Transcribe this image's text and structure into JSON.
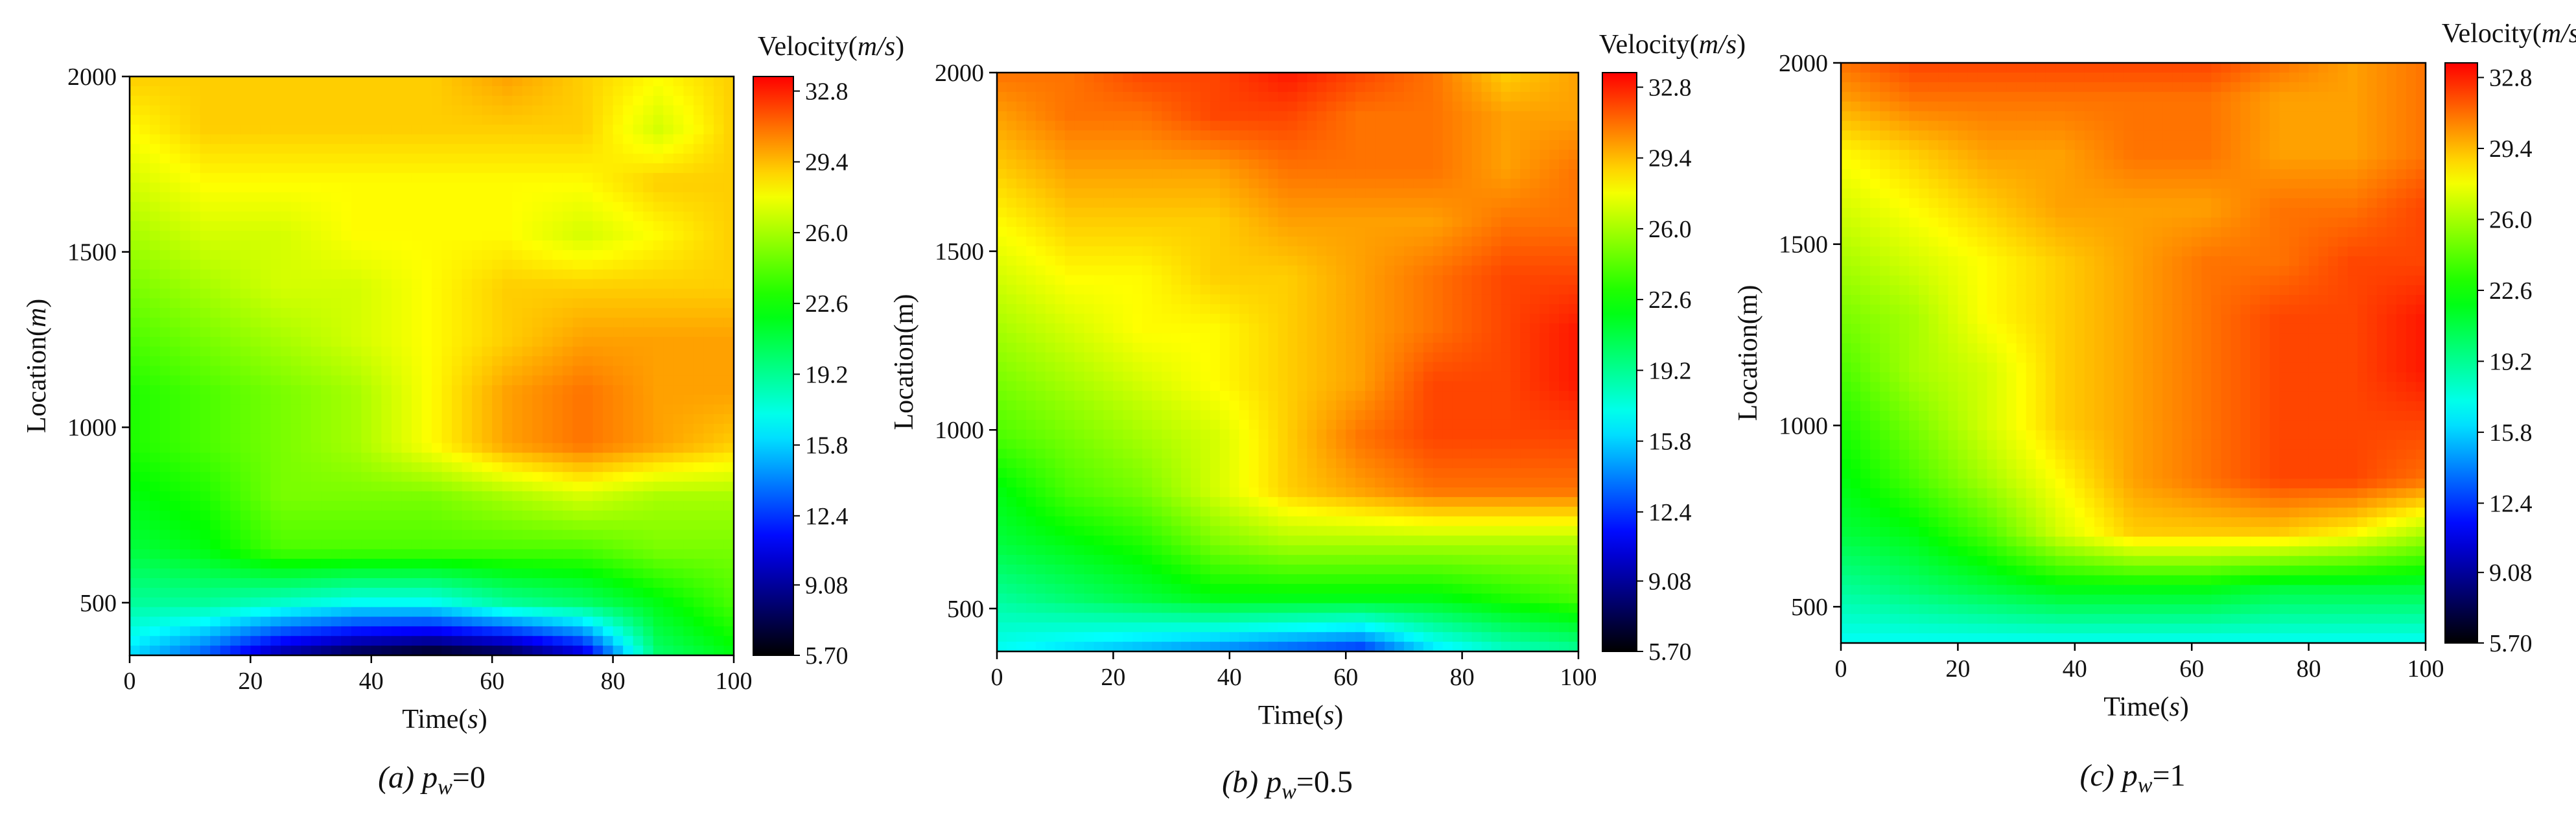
{
  "figure": {
    "panel_count": 3
  },
  "chart_data": [
    {
      "type": "heatmap",
      "panel_id": "a",
      "caption_prefix": "(a)",
      "caption_var": "p",
      "caption_sub": "w",
      "caption_value": "=0",
      "xlabel_main": "Time(",
      "xlabel_unit": "s",
      "xlabel_close": ")",
      "ylabel": "Location(m)",
      "ylabel_unit_italic": true,
      "colorbar_title_main": "Velocity(",
      "colorbar_title_unit": "m/s",
      "colorbar_title_close": ")",
      "xlim": [
        0,
        100
      ],
      "ylim": [
        350,
        2000
      ],
      "x_ticks": [
        0,
        20,
        40,
        60,
        80,
        100
      ],
      "y_ticks": [
        500,
        1000,
        1500,
        2000
      ],
      "colorbar_range": [
        5.7,
        33.5
      ],
      "colorbar_ticks": [
        "32.8",
        "29.4",
        "26.0",
        "22.6",
        "19.2",
        "15.8",
        "12.4",
        "9.08",
        "5.70"
      ],
      "colorbar_tick_values": [
        32.8,
        29.4,
        26.0,
        22.6,
        19.2,
        15.8,
        12.4,
        9.08,
        5.7
      ],
      "colorscale": [
        "#000000",
        "#0000ff",
        "#00ffff",
        "#00ff00",
        "#ffff00",
        "#ff0000"
      ],
      "grid_x": [
        0,
        12.5,
        25,
        37.5,
        50,
        62.5,
        75,
        87.5,
        100
      ],
      "grid_y": [
        350,
        500,
        650,
        800,
        950,
        1100,
        1250,
        1400,
        1550,
        1700,
        1850,
        2000
      ],
      "values": [
        [
          16,
          13,
          9,
          7,
          6,
          7,
          10,
          20,
          22
        ],
        [
          19,
          19,
          18,
          17,
          17,
          19,
          20,
          22,
          24
        ],
        [
          21,
          22,
          24,
          24,
          24,
          24,
          24,
          25,
          25
        ],
        [
          22,
          23,
          25,
          25,
          25,
          26,
          27,
          26,
          26
        ],
        [
          23,
          24,
          25,
          26,
          28,
          30,
          31,
          30,
          29
        ],
        [
          23,
          24,
          25,
          26,
          28,
          30,
          31,
          30,
          30
        ],
        [
          24,
          25,
          26,
          27,
          28,
          29,
          30,
          30,
          30
        ],
        [
          25,
          26,
          27,
          27,
          28,
          29,
          29,
          29,
          29
        ],
        [
          26,
          27,
          27,
          28,
          28,
          28,
          27,
          28,
          29
        ],
        [
          27,
          28,
          28,
          28,
          28,
          28,
          28,
          29,
          29
        ],
        [
          28,
          29,
          29,
          29,
          29,
          29,
          29,
          27,
          29
        ],
        [
          29,
          29,
          29,
          29,
          29,
          30,
          29,
          28,
          29
        ]
      ]
    },
    {
      "type": "heatmap",
      "panel_id": "b",
      "caption_prefix": "(b)",
      "caption_var": "p",
      "caption_sub": "w",
      "caption_value": "=0.5",
      "xlabel_main": "Time(",
      "xlabel_unit": "s",
      "xlabel_close": ")",
      "ylabel": "Location(m)",
      "ylabel_unit_italic": false,
      "colorbar_title_main": "Velocity(",
      "colorbar_title_unit": "m/s",
      "colorbar_title_close": ")",
      "xlim": [
        0,
        100
      ],
      "ylim": [
        380,
        2000
      ],
      "x_ticks": [
        0,
        20,
        40,
        60,
        80,
        100
      ],
      "y_ticks": [
        500,
        1000,
        1500,
        2000
      ],
      "colorbar_range": [
        5.7,
        33.5
      ],
      "colorbar_ticks": [
        "32.8",
        "29.4",
        "26.0",
        "22.6",
        "19.2",
        "15.8",
        "12.4",
        "9.08",
        "5.70"
      ],
      "colorbar_tick_values": [
        32.8,
        29.4,
        26.0,
        22.6,
        19.2,
        15.8,
        12.4,
        9.08,
        5.7
      ],
      "colorscale": [
        "#000000",
        "#0000ff",
        "#00ffff",
        "#00ff00",
        "#ffff00",
        "#ff0000"
      ],
      "grid_x": [
        0,
        12.5,
        25,
        37.5,
        50,
        62.5,
        75,
        87.5,
        100
      ],
      "grid_y": [
        380,
        530,
        680,
        830,
        980,
        1130,
        1280,
        1430,
        1580,
        1730,
        1880,
        2000
      ],
      "values": [
        [
          17,
          16,
          15,
          14,
          13,
          12,
          16,
          18,
          19
        ],
        [
          19,
          20,
          21,
          22,
          22,
          22,
          22,
          23,
          24
        ],
        [
          21,
          22,
          23,
          25,
          26,
          26,
          26,
          26,
          26
        ],
        [
          22,
          24,
          25,
          27,
          29,
          30,
          31,
          31,
          31
        ],
        [
          24,
          25,
          26,
          27,
          29,
          31,
          32,
          32,
          32
        ],
        [
          25,
          26,
          27,
          28,
          29,
          30,
          32,
          32,
          33
        ],
        [
          26,
          27,
          28,
          28,
          29,
          30,
          31,
          32,
          33
        ],
        [
          27,
          28,
          28,
          29,
          29,
          30,
          31,
          32,
          32
        ],
        [
          28,
          29,
          29,
          29,
          30,
          30,
          30,
          31,
          31
        ],
        [
          29,
          30,
          30,
          30,
          31,
          31,
          31,
          30,
          31
        ],
        [
          30,
          31,
          31,
          32,
          32,
          31,
          31,
          30,
          30
        ],
        [
          31,
          31,
          32,
          32,
          33,
          32,
          31,
          29,
          30
        ]
      ]
    },
    {
      "type": "heatmap",
      "panel_id": "c",
      "caption_prefix": "(c)",
      "caption_var": "p",
      "caption_sub": "w",
      "caption_value": "=1",
      "xlabel_main": "Time(",
      "xlabel_unit": "s",
      "xlabel_close": ")",
      "ylabel": "Location(m)",
      "ylabel_unit_italic": false,
      "colorbar_title_main": "Velocity(",
      "colorbar_title_unit": "m/s",
      "colorbar_title_close": ")",
      "xlim": [
        0,
        100
      ],
      "ylim": [
        400,
        2000
      ],
      "x_ticks": [
        0,
        20,
        40,
        60,
        80,
        100
      ],
      "y_ticks": [
        500,
        1000,
        1500,
        2000
      ],
      "colorbar_range": [
        5.7,
        33.5
      ],
      "colorbar_ticks": [
        "32.8",
        "29.4",
        "26.0",
        "22.6",
        "19.2",
        "15.8",
        "12.4",
        "9.08",
        "5.70"
      ],
      "colorbar_tick_values": [
        32.8,
        29.4,
        26.0,
        22.6,
        19.2,
        15.8,
        12.4,
        9.08,
        5.7
      ],
      "colorscale": [
        "#000000",
        "#0000ff",
        "#00ffff",
        "#00ff00",
        "#ffff00",
        "#ff0000"
      ],
      "grid_x": [
        0,
        12.5,
        25,
        37.5,
        50,
        62.5,
        75,
        87.5,
        100
      ],
      "grid_y": [
        400,
        550,
        700,
        850,
        1000,
        1150,
        1300,
        1450,
        1600,
        1750,
        1900,
        2000
      ],
      "values": [
        [
          17,
          17,
          17,
          17,
          17,
          17,
          17,
          17,
          17
        ],
        [
          19,
          20,
          21,
          22,
          22,
          22,
          21,
          21,
          21
        ],
        [
          21,
          22,
          24,
          27,
          29,
          29,
          29,
          28,
          26
        ],
        [
          22,
          24,
          26,
          28,
          30,
          31,
          32,
          32,
          31
        ],
        [
          23,
          25,
          27,
          29,
          30,
          31,
          32,
          32,
          32
        ],
        [
          24,
          26,
          27,
          29,
          30,
          31,
          32,
          32,
          33
        ],
        [
          25,
          26,
          28,
          29,
          30,
          31,
          32,
          32,
          33
        ],
        [
          26,
          27,
          28,
          29,
          30,
          31,
          31,
          32,
          32
        ],
        [
          27,
          28,
          29,
          30,
          30,
          30,
          31,
          31,
          32
        ],
        [
          28,
          29,
          30,
          30,
          31,
          31,
          30,
          30,
          31
        ],
        [
          30,
          31,
          31,
          31,
          31,
          31,
          30,
          30,
          31
        ],
        [
          31,
          32,
          32,
          32,
          32,
          32,
          31,
          30,
          31
        ]
      ]
    }
  ]
}
